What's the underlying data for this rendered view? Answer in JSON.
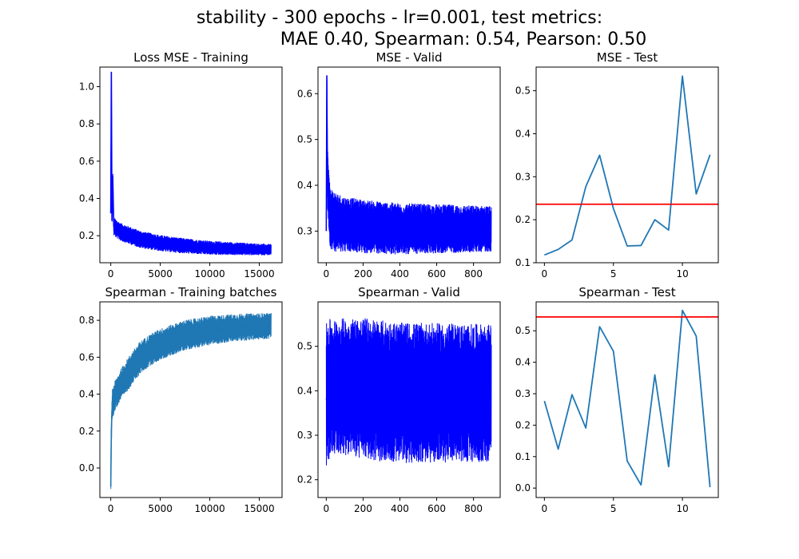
{
  "figure": {
    "title_line1": "stability - 300 epochs - lr=0.001,  test metrics:",
    "title_line2": "MAE 0.40, Spearman: 0.54, Pearson: 0.50"
  },
  "chart_data": [
    {
      "type": "line",
      "title": "Loss MSE - Training",
      "xlim": [
        -1100,
        17300
      ],
      "ylim": [
        0.055,
        1.105
      ],
      "xticks": [
        0,
        5000,
        10000,
        15000
      ],
      "xtick_labels": [
        "0",
        "5000",
        "10000",
        "15000"
      ],
      "yticks": [
        0.2,
        0.4,
        0.6,
        0.8,
        1.0
      ],
      "ytick_labels": [
        "0.2",
        "0.4",
        "0.6",
        "0.8",
        "1.0"
      ],
      "series": [
        {
          "color": "#0000ff",
          "style": "noisy_band",
          "points": [
            [
              0,
              0.32
            ],
            [
              60,
              1.08
            ],
            [
              120,
              0.28
            ],
            [
              200,
              0.52
            ],
            [
              300,
              0.25
            ],
            [
              500,
              0.24
            ],
            [
              1000,
              0.22
            ],
            [
              2000,
              0.2
            ],
            [
              3000,
              0.18
            ],
            [
              5000,
              0.16
            ],
            [
              7500,
              0.145
            ],
            [
              10000,
              0.135
            ],
            [
              12500,
              0.13
            ],
            [
              16200,
              0.125
            ]
          ],
          "band_halfwidth": [
            [
              0,
              0.05
            ],
            [
              16200,
              0.03
            ]
          ]
        }
      ]
    },
    {
      "type": "line",
      "title": "MSE - Valid",
      "xlim": [
        -45,
        945
      ],
      "ylim": [
        0.231,
        0.658
      ],
      "xticks": [
        0,
        200,
        400,
        600,
        800
      ],
      "xtick_labels": [
        "0",
        "200",
        "400",
        "600",
        "800"
      ],
      "yticks": [
        0.3,
        0.4,
        0.5,
        0.6
      ],
      "ytick_labels": [
        "0.3",
        "0.4",
        "0.5",
        "0.6"
      ],
      "series": [
        {
          "color": "#0000ff",
          "style": "noisy_band",
          "points": [
            [
              0,
              0.3
            ],
            [
              3,
              0.64
            ],
            [
              6,
              0.42
            ],
            [
              20,
              0.33
            ],
            [
              50,
              0.32
            ],
            [
              100,
              0.315
            ],
            [
              200,
              0.31
            ],
            [
              400,
              0.305
            ],
            [
              600,
              0.305
            ],
            [
              897,
              0.305
            ]
          ],
          "band_halfwidth": [
            [
              0,
              0.07
            ],
            [
              100,
              0.06
            ],
            [
              897,
              0.05
            ]
          ]
        }
      ]
    },
    {
      "type": "line",
      "title": "MSE - Test",
      "xlim": [
        -0.6,
        12.6
      ],
      "ylim": [
        0.1,
        0.555
      ],
      "xticks": [
        0,
        5,
        10
      ],
      "xtick_labels": [
        "0",
        "5",
        "10"
      ],
      "yticks": [
        0.1,
        0.2,
        0.3,
        0.4,
        0.5
      ],
      "ytick_labels": [
        "0.1",
        "0.2",
        "0.3",
        "0.4",
        "0.5"
      ],
      "series": [
        {
          "color": "#1f77b4",
          "style": "line",
          "x": [
            0,
            1,
            2,
            3,
            4,
            5,
            6,
            7,
            8,
            9,
            10,
            11,
            12
          ],
          "y": [
            0.118,
            0.131,
            0.153,
            0.277,
            0.35,
            0.226,
            0.139,
            0.14,
            0.2,
            0.176,
            0.534,
            0.26,
            0.351
          ]
        }
      ],
      "hline": {
        "y": 0.236,
        "color": "#ff0000"
      }
    },
    {
      "type": "line",
      "title": "Spearman - Training batches",
      "xlim": [
        -1100,
        17300
      ],
      "ylim": [
        -0.16,
        0.9
      ],
      "xticks": [
        0,
        5000,
        10000,
        15000
      ],
      "xtick_labels": [
        "0",
        "5000",
        "10000",
        "15000"
      ],
      "yticks": [
        0.0,
        0.2,
        0.4,
        0.6,
        0.8
      ],
      "ytick_labels": [
        "0.0",
        "0.2",
        "0.4",
        "0.6",
        "0.8"
      ],
      "series": [
        {
          "color": "#1f77b4",
          "style": "noisy_band",
          "points": [
            [
              0,
              -0.1
            ],
            [
              60,
              0.2
            ],
            [
              150,
              0.35
            ],
            [
              500,
              0.4
            ],
            [
              1000,
              0.45
            ],
            [
              2000,
              0.53
            ],
            [
              3000,
              0.6
            ],
            [
              4000,
              0.64
            ],
            [
              5000,
              0.67
            ],
            [
              7500,
              0.72
            ],
            [
              10000,
              0.745
            ],
            [
              12500,
              0.76
            ],
            [
              16200,
              0.77
            ]
          ],
          "band_halfwidth": [
            [
              0,
              0.08
            ],
            [
              2000,
              0.09
            ],
            [
              16200,
              0.07
            ]
          ]
        }
      ]
    },
    {
      "type": "line",
      "title": "Spearman - Valid",
      "xlim": [
        -45,
        945
      ],
      "ylim": [
        0.16,
        0.6
      ],
      "xticks": [
        0,
        200,
        400,
        600,
        800
      ],
      "xtick_labels": [
        "0",
        "200",
        "400",
        "600",
        "800"
      ],
      "yticks": [
        0.2,
        0.3,
        0.4,
        0.5
      ],
      "ytick_labels": [
        "0.2",
        "0.3",
        "0.4",
        "0.5"
      ],
      "series": [
        {
          "color": "#0000ff",
          "style": "noisy_band",
          "points": [
            [
              0,
              0.38
            ],
            [
              10,
              0.4
            ],
            [
              30,
              0.41
            ],
            [
              100,
              0.41
            ],
            [
              200,
              0.405
            ],
            [
              400,
              0.395
            ],
            [
              600,
              0.395
            ],
            [
              897,
              0.395
            ]
          ],
          "band_halfwidth": [
            [
              0,
              0.17
            ],
            [
              30,
              0.15
            ],
            [
              200,
              0.16
            ],
            [
              897,
              0.155
            ]
          ]
        }
      ]
    },
    {
      "type": "line",
      "title": "Spearman - Test",
      "xlim": [
        -0.6,
        12.6
      ],
      "ylim": [
        -0.03,
        0.592
      ],
      "xticks": [
        0,
        5,
        10
      ],
      "xtick_labels": [
        "0",
        "5",
        "10"
      ],
      "yticks": [
        0.0,
        0.1,
        0.2,
        0.3,
        0.4,
        0.5
      ],
      "ytick_labels": [
        "0.0",
        "0.1",
        "0.2",
        "0.3",
        "0.4",
        "0.5"
      ],
      "series": [
        {
          "color": "#1f77b4",
          "style": "line",
          "x": [
            0,
            1,
            2,
            3,
            4,
            5,
            6,
            7,
            8,
            9,
            10,
            11,
            12
          ],
          "y": [
            0.277,
            0.124,
            0.297,
            0.191,
            0.513,
            0.435,
            0.086,
            0.01,
            0.36,
            0.068,
            0.565,
            0.483,
            0.003
          ]
        }
      ],
      "hline": {
        "y": 0.544,
        "color": "#ff0000"
      }
    }
  ]
}
